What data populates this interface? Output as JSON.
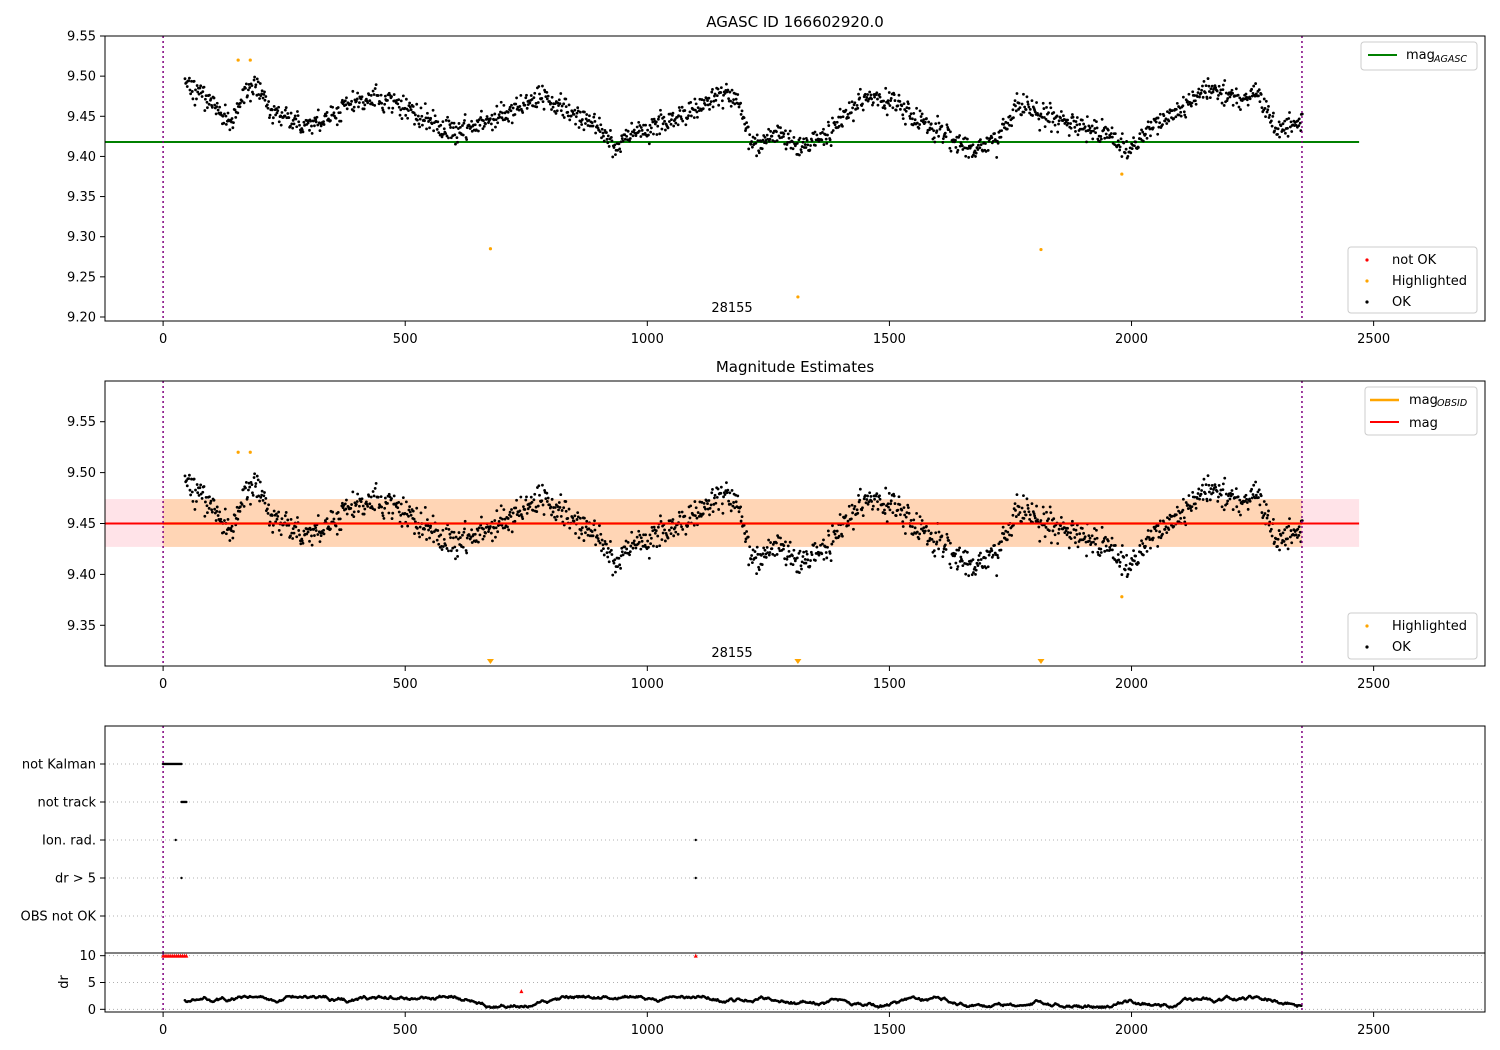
{
  "chart_data": [
    {
      "type": "scatter",
      "title": "AGASC ID 166602920.0",
      "xlabel": "",
      "ylabel": "",
      "xlim": [
        -120,
        2730
      ],
      "ylim": [
        9.195,
        9.55
      ],
      "xticks": [
        0,
        500,
        1000,
        1500,
        2000,
        2500
      ],
      "yticks": [
        "9.20",
        "9.25",
        "9.30",
        "9.35",
        "9.40",
        "9.45",
        "9.50",
        "9.55"
      ],
      "obsid_label": "28155",
      "obs_boundaries": [
        0,
        2352
      ],
      "series": [
        {
          "name": "mag_AGASC",
          "kind": "line",
          "color": "#008000",
          "y": 9.418,
          "x_range": [
            -120,
            2470
          ]
        },
        {
          "name": "not OK",
          "kind": "scatter",
          "color": "#ff0000",
          "points": []
        },
        {
          "name": "Highlighted",
          "kind": "scatter",
          "color": "#ffa500",
          "points": [
            [
              155,
              9.52
            ],
            [
              180,
              9.52
            ],
            [
              676,
              9.285
            ],
            [
              1311,
              9.225
            ],
            [
              1813,
              9.284
            ],
            [
              1980,
              9.378
            ]
          ]
        },
        {
          "name": "OK",
          "kind": "scatter",
          "color": "#000000",
          "x_range": [
            45,
            2352
          ],
          "profile": [
            [
              45,
              9.49
            ],
            [
              100,
              9.47
            ],
            [
              140,
              9.44
            ],
            [
              170,
              9.485
            ],
            [
              190,
              9.49
            ],
            [
              230,
              9.45
            ],
            [
              300,
              9.44
            ],
            [
              350,
              9.45
            ],
            [
              400,
              9.47
            ],
            [
              480,
              9.47
            ],
            [
              530,
              9.45
            ],
            [
              600,
              9.43
            ],
            [
              700,
              9.45
            ],
            [
              780,
              9.475
            ],
            [
              850,
              9.45
            ],
            [
              900,
              9.44
            ],
            [
              930,
              9.41
            ],
            [
              980,
              9.43
            ],
            [
              1050,
              9.445
            ],
            [
              1100,
              9.46
            ],
            [
              1150,
              9.48
            ],
            [
              1185,
              9.47
            ],
            [
              1220,
              9.41
            ],
            [
              1270,
              9.43
            ],
            [
              1320,
              9.41
            ],
            [
              1380,
              9.43
            ],
            [
              1420,
              9.46
            ],
            [
              1470,
              9.475
            ],
            [
              1530,
              9.46
            ],
            [
              1600,
              9.43
            ],
            [
              1660,
              9.41
            ],
            [
              1720,
              9.415
            ],
            [
              1760,
              9.465
            ],
            [
              1820,
              9.45
            ],
            [
              1880,
              9.44
            ],
            [
              1950,
              9.43
            ],
            [
              1990,
              9.405
            ],
            [
              2050,
              9.44
            ],
            [
              2120,
              9.465
            ],
            [
              2160,
              9.485
            ],
            [
              2230,
              9.47
            ],
            [
              2260,
              9.48
            ],
            [
              2300,
              9.43
            ],
            [
              2352,
              9.445
            ]
          ]
        }
      ],
      "legends": [
        {
          "position": "top-right",
          "entries": [
            {
              "label": "mag",
              "subscript": "AGASC",
              "kind": "line",
              "color": "#008000"
            }
          ]
        },
        {
          "position": "bottom-right",
          "entries": [
            {
              "label": "not OK",
              "kind": "dot",
              "color": "#ff0000"
            },
            {
              "label": "Highlighted",
              "kind": "dot",
              "color": "#ffa500"
            },
            {
              "label": "OK",
              "kind": "dot",
              "color": "#000000"
            }
          ]
        }
      ]
    },
    {
      "type": "scatter",
      "title": "Magnitude Estimates",
      "xlabel": "",
      "ylabel": "",
      "xlim": [
        -120,
        2730
      ],
      "ylim": [
        9.31,
        9.59
      ],
      "xticks": [
        0,
        500,
        1000,
        1500,
        2000,
        2500
      ],
      "yticks": [
        "9.35",
        "9.40",
        "9.45",
        "9.50",
        "9.55"
      ],
      "obsid_label": "28155",
      "obs_boundaries": [
        0,
        2352
      ],
      "bands": [
        {
          "color": "#ffc0cb",
          "opacity": 0.45,
          "y": [
            9.427,
            9.474
          ],
          "x_range": [
            -120,
            2470
          ]
        },
        {
          "color": "#ffa500",
          "opacity": 0.22,
          "y": [
            9.427,
            9.474
          ],
          "x_range": [
            0,
            2352
          ]
        }
      ],
      "series": [
        {
          "name": "mag_OBSID",
          "kind": "line",
          "color": "#ffa500",
          "y": 9.45,
          "x_range": [
            0,
            2352
          ]
        },
        {
          "name": "mag",
          "kind": "line",
          "color": "#ff0000",
          "y": 9.45,
          "x_range": [
            -120,
            2470
          ]
        },
        {
          "name": "Highlighted",
          "kind": "scatter",
          "color": "#ffa500",
          "points": [
            [
              155,
              9.52
            ],
            [
              180,
              9.52
            ],
            [
              1980,
              9.378
            ]
          ],
          "below_range_markers": [
            676,
            1311,
            1813
          ]
        },
        {
          "name": "OK",
          "kind": "scatter",
          "color": "#000000",
          "x_range": [
            45,
            2352
          ],
          "profile": [
            [
              45,
              9.49
            ],
            [
              100,
              9.47
            ],
            [
              140,
              9.44
            ],
            [
              170,
              9.485
            ],
            [
              190,
              9.49
            ],
            [
              230,
              9.45
            ],
            [
              300,
              9.44
            ],
            [
              350,
              9.45
            ],
            [
              400,
              9.47
            ],
            [
              480,
              9.47
            ],
            [
              530,
              9.45
            ],
            [
              600,
              9.43
            ],
            [
              700,
              9.45
            ],
            [
              780,
              9.475
            ],
            [
              850,
              9.45
            ],
            [
              900,
              9.44
            ],
            [
              930,
              9.41
            ],
            [
              980,
              9.43
            ],
            [
              1050,
              9.445
            ],
            [
              1100,
              9.46
            ],
            [
              1150,
              9.48
            ],
            [
              1185,
              9.47
            ],
            [
              1220,
              9.41
            ],
            [
              1270,
              9.43
            ],
            [
              1320,
              9.41
            ],
            [
              1380,
              9.43
            ],
            [
              1420,
              9.46
            ],
            [
              1470,
              9.475
            ],
            [
              1530,
              9.46
            ],
            [
              1600,
              9.43
            ],
            [
              1660,
              9.41
            ],
            [
              1720,
              9.415
            ],
            [
              1760,
              9.465
            ],
            [
              1820,
              9.45
            ],
            [
              1880,
              9.44
            ],
            [
              1950,
              9.43
            ],
            [
              1990,
              9.405
            ],
            [
              2050,
              9.44
            ],
            [
              2120,
              9.465
            ],
            [
              2160,
              9.485
            ],
            [
              2230,
              9.47
            ],
            [
              2260,
              9.48
            ],
            [
              2300,
              9.43
            ],
            [
              2352,
              9.445
            ]
          ]
        }
      ],
      "legends": [
        {
          "position": "top-right",
          "entries": [
            {
              "label": "mag",
              "subscript": "OBSID",
              "kind": "line",
              "color": "#ffa500"
            },
            {
              "label": "mag",
              "subscript": "",
              "kind": "line",
              "color": "#ff0000"
            }
          ]
        },
        {
          "position": "bottom-right",
          "entries": [
            {
              "label": "Highlighted",
              "kind": "dot",
              "color": "#ffa500"
            },
            {
              "label": "OK",
              "kind": "dot",
              "color": "#000000"
            }
          ]
        }
      ]
    },
    {
      "type": "scatter",
      "title": "",
      "xlabel": "",
      "ylabel": "",
      "xlim": [
        -120,
        2730
      ],
      "flags": [
        "not Kalman",
        "not track",
        "Ion. rad.",
        "dr > 5",
        "OBS not OK"
      ],
      "flag_points": {
        "not Kalman": [
          [
            0,
            38
          ]
        ],
        "not track": [
          [
            38,
            48
          ]
        ],
        "Ion. rad.": [
          [
            26,
            26
          ],
          [
            1100,
            1100
          ]
        ],
        "dr > 5": [
          [
            38,
            38
          ],
          [
            1100,
            1100
          ]
        ]
      },
      "obs_boundaries": [
        0,
        2352
      ],
      "grid": "horizontal dotted"
    },
    {
      "type": "scatter",
      "title": "",
      "xlabel": "",
      "ylabel": "dr",
      "xlim": [
        -120,
        2730
      ],
      "ylim": [
        -0.5,
        10.5
      ],
      "xticks": [
        0,
        500,
        1000,
        1500,
        2000,
        2500
      ],
      "yticks": [
        "0",
        "5",
        "10"
      ],
      "obs_boundaries": [
        0,
        2352
      ],
      "series": [
        {
          "name": "not OK",
          "kind": "scatter",
          "color": "#ff0000",
          "points": [
            [
              0,
              10
            ],
            [
              4,
              10
            ],
            [
              8,
              10
            ],
            [
              12,
              10
            ],
            [
              16,
              10
            ],
            [
              20,
              10
            ],
            [
              24,
              10
            ],
            [
              28,
              10
            ],
            [
              32,
              10
            ],
            [
              36,
              10
            ],
            [
              40,
              10
            ],
            [
              44,
              10
            ],
            [
              48,
              10
            ],
            [
              1100,
              10
            ],
            [
              740,
              3.4
            ]
          ]
        },
        {
          "name": "OK",
          "kind": "scatter",
          "color": "#000000",
          "x_range": [
            45,
            2352
          ],
          "typical": [
            0.3,
            2.5
          ]
        }
      ],
      "grid": "horizontal dotted"
    }
  ]
}
